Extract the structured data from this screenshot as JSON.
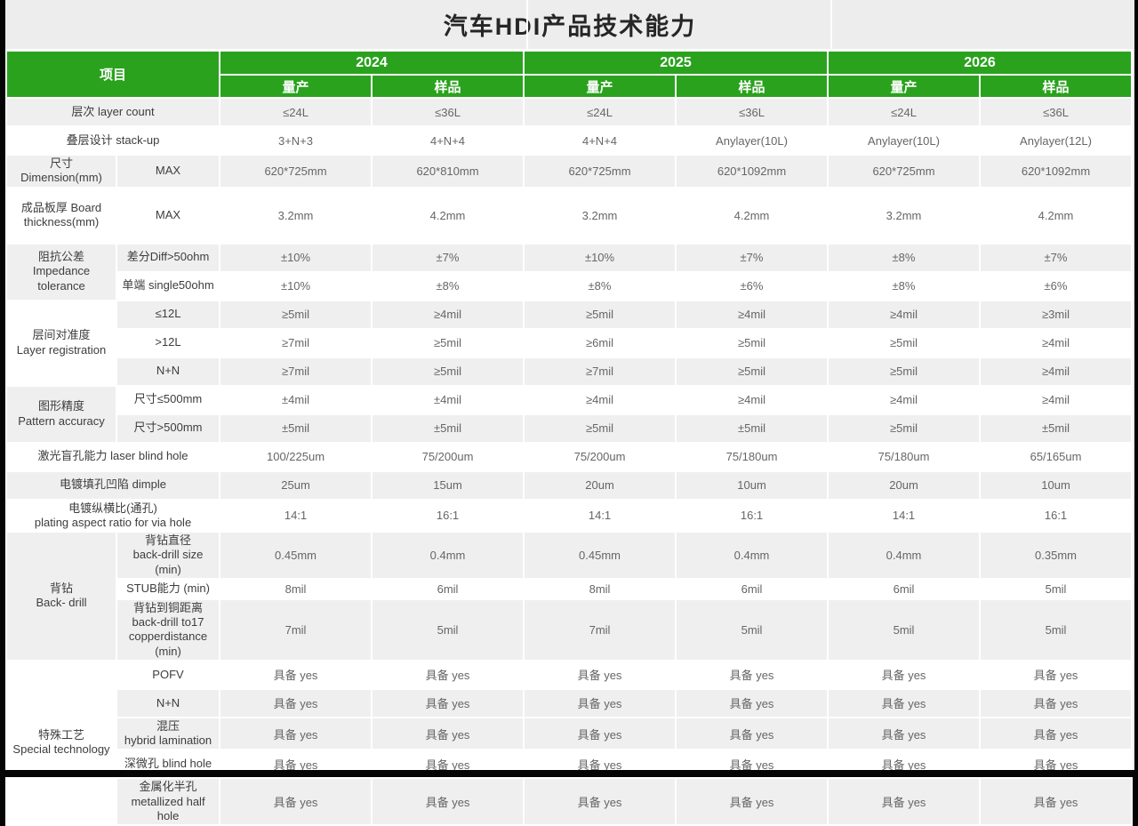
{
  "title": "汽车HDI产品技术能力",
  "colors": {
    "header_green": "#2aa21e",
    "row_gray": "#efefef",
    "row_white": "#ffffff",
    "page_bg": "#ededed",
    "frame_black": "#050505",
    "header_text": "#ffffff",
    "label_text": "#3d3d3d",
    "value_text": "#666666"
  },
  "header": {
    "item": "项目",
    "years": [
      "2024",
      "2025",
      "2026"
    ],
    "production": "量产",
    "sample": "样品"
  },
  "rows": [
    {
      "label": "层次  layer count",
      "merged": true,
      "labelShade": "g",
      "values": [
        "≤24L",
        "≤36L",
        "≤24L",
        "≤36L",
        "≤24L",
        "≤36L"
      ],
      "valueShade": "g"
    },
    {
      "label": "叠层设计 stack-up",
      "merged": true,
      "labelShade": "w",
      "values": [
        "3+N+3",
        "4+N+4",
        "4+N+4",
        "Anylayer(10L)",
        "Anylayer(10L)",
        "Anylayer(12L)"
      ],
      "valueShade": "w"
    },
    {
      "label": "尺寸Dimension(mm)",
      "rowspan": 1,
      "labelShade": "g",
      "sublabel": "MAX",
      "subShade": "g",
      "values": [
        "620*725mm",
        "620*810mm",
        "620*725mm",
        "620*1092mm",
        "620*725mm",
        "620*1092mm"
      ],
      "valueShade": "g"
    },
    {
      "label": "成品板厚 Board\nthickness(mm)",
      "rowspan": 1,
      "labelShade": "w",
      "sublabel": "MAX",
      "subShade": "w",
      "values": [
        "3.2mm",
        "4.2mm",
        "3.2mm",
        "4.2mm",
        "3.2mm",
        "4.2mm"
      ],
      "valueShade": "w"
    },
    {
      "label": "阻抗公差\nImpedance tolerance",
      "rowspan": 2,
      "labelShade": "g",
      "sublabel": "差分Diff>50ohm",
      "subShade": "g",
      "values": [
        "±10%",
        "±7%",
        "±10%",
        "±7%",
        "±8%",
        "±7%"
      ],
      "valueShade": "g"
    },
    {
      "sublabel": "单端 single50ohm",
      "subShade": "w",
      "values": [
        "±10%",
        "±8%",
        "±8%",
        "±6%",
        "±8%",
        "±6%"
      ],
      "valueShade": "w"
    },
    {
      "label": "层间对准度\nLayer registration",
      "rowspan": 3,
      "labelShade": "w",
      "sublabel": "≤12L",
      "subShade": "g",
      "values": [
        "≥5mil",
        "≥4mil",
        "≥5mil",
        "≥4mil",
        "≥4mil",
        "≥3mil"
      ],
      "valueShade": "g"
    },
    {
      "sublabel": ">12L",
      "subShade": "w",
      "values": [
        "≥7mil",
        "≥5mil",
        "≥6mil",
        "≥5mil",
        "≥5mil",
        "≥4mil"
      ],
      "valueShade": "w"
    },
    {
      "sublabel": "N+N",
      "subShade": "g",
      "values": [
        "≥7mil",
        "≥5mil",
        "≥7mil",
        "≥5mil",
        "≥5mil",
        "≥4mil"
      ],
      "valueShade": "g"
    },
    {
      "label": "图形精度\nPattern accuracy",
      "rowspan": 2,
      "labelShade": "g",
      "sublabel": "尺寸≤500mm",
      "subShade": "w",
      "values": [
        "±4mil",
        "±4mil",
        "≥4mil",
        "≥4mil",
        "≥4mil",
        "≥4mil"
      ],
      "valueShade": "w"
    },
    {
      "sublabel": "尺寸>500mm",
      "subShade": "g",
      "values": [
        "±5mil",
        "±5mil",
        "≥5mil",
        "±5mil",
        "≥5mil",
        "±5mil"
      ],
      "valueShade": "g"
    },
    {
      "label": "激光盲孔能力 laser blind hole",
      "merged": true,
      "labelShade": "w",
      "values": [
        "100/225um",
        "75/200um",
        "75/200um",
        "75/180um",
        "75/180um",
        "65/165um"
      ],
      "valueShade": "w"
    },
    {
      "label": "电镀填孔凹陷  dimple",
      "merged": true,
      "labelShade": "g",
      "values": [
        "25um",
        "15um",
        "20um",
        "10um",
        "20um",
        "10um"
      ],
      "valueShade": "g"
    },
    {
      "label": "电镀纵横比(通孔)\nplating aspect ratio for via hole",
      "merged": true,
      "labelShade": "w",
      "values": [
        "14:1",
        "16:1",
        "14:1",
        "16:1",
        "14:1",
        "16:1"
      ],
      "valueShade": "w"
    },
    {
      "label": "背钻\nBack- drill",
      "rowspan": 3,
      "labelShade": "g",
      "sublabel": "背钻直径\nback-drill size (min)",
      "subShade": "g",
      "values": [
        "0.45mm",
        "0.4mm",
        "0.45mm",
        "0.4mm",
        "0.4mm",
        "0.35mm"
      ],
      "valueShade": "g"
    },
    {
      "sublabel": "STUB能力 (min)",
      "subShade": "w",
      "values": [
        "8mil",
        "6mil",
        "8mil",
        "6mil",
        "6mil",
        "5mil"
      ],
      "valueShade": "w"
    },
    {
      "sublabel": "背钻到铜距离\nback-drill to17\ncopperdistance (min)",
      "subShade": "g",
      "values": [
        "7mil",
        "5mil",
        "7mil",
        "5mil",
        "5mil",
        "5mil"
      ],
      "valueShade": "g"
    },
    {
      "label": "特殊工艺\nSpecial  technology",
      "rowspan": 5,
      "labelShade": "w",
      "sublabel": "POFV",
      "subShade": "w",
      "values": [
        "具备 yes",
        "具备 yes",
        "具备 yes",
        "具备 yes",
        "具备 yes",
        "具备 yes"
      ],
      "valueShade": "w"
    },
    {
      "sublabel": "N+N",
      "subShade": "g",
      "values": [
        "具备 yes",
        "具备 yes",
        "具备 yes",
        "具备 yes",
        "具备 yes",
        "具备 yes"
      ],
      "valueShade": "g"
    },
    {
      "sublabel": "混压\nhybrid lamination",
      "subShade": "g",
      "values": [
        "具备 yes",
        "具备 yes",
        "具备 yes",
        "具备 yes",
        "具备 yes",
        "具备 yes"
      ],
      "valueShade": "g"
    },
    {
      "sublabel": "深微孔 blind hole",
      "subShade": "w",
      "values": [
        "具备 yes",
        "具备 yes",
        "具备 yes",
        "具备 yes",
        "具备 yes",
        "具备 yes"
      ],
      "valueShade": "w"
    },
    {
      "sublabel": "金属化半孔\nmetallized half hole",
      "subShade": "g",
      "values": [
        "具备 yes",
        "具备 yes",
        "具备 yes",
        "具备 yes",
        "具备 yes",
        "具备 yes"
      ],
      "valueShade": "g"
    }
  ]
}
